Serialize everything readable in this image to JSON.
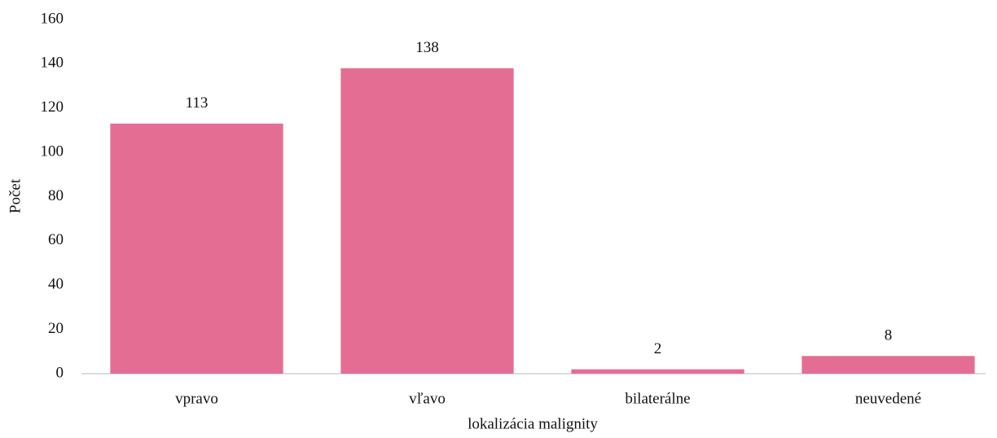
{
  "chart_data": {
    "type": "bar",
    "categories": [
      "vpravo",
      "vľavo",
      "bilaterálne",
      "neuvedené"
    ],
    "values": [
      113,
      138,
      2,
      8
    ],
    "color": "#e46e93",
    "xlabel": "lokalizácia malignity",
    "ylabel": "Počet",
    "ylim": [
      0,
      160
    ],
    "yticks": [
      0,
      20,
      40,
      60,
      80,
      100,
      120,
      140,
      160
    ],
    "grid": false,
    "data_labels": true
  }
}
